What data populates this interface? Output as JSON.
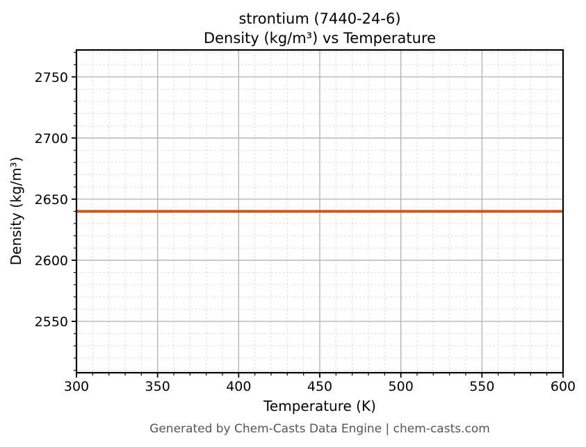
{
  "chart_data": {
    "type": "line",
    "title_line1": "strontium (7440-24-6)",
    "title_line2": "Density (kg/m³) vs Temperature",
    "xlabel": "Temperature (K)",
    "ylabel": "Density (kg/m³)",
    "xlim": [
      300,
      600
    ],
    "ylim": [
      2508,
      2772
    ],
    "x_major_ticks": [
      300,
      350,
      400,
      450,
      500,
      550,
      600
    ],
    "y_major_ticks": [
      2550,
      2600,
      2650,
      2700,
      2750
    ],
    "x_minor_step": 10,
    "y_minor_step": 10,
    "grid": {
      "major": true,
      "minor": true
    },
    "legend_position": "none",
    "series": [
      {
        "name": "Density",
        "color": "#d0541e",
        "line_width": 4,
        "x": [
          300,
          350,
          400,
          450,
          500,
          550,
          600
        ],
        "y": [
          2640,
          2640,
          2640,
          2640,
          2640,
          2640,
          2640
        ]
      }
    ]
  },
  "footer": {
    "text": "Generated by Chem-Casts Data Engine | chem-casts.com"
  },
  "style": {
    "axis_color": "#000000",
    "text_color": "#000000",
    "grid_major_color": "#b0b0b0",
    "grid_minor_color": "#d9d9d9",
    "footer_color": "#555555",
    "background": "#ffffff"
  }
}
